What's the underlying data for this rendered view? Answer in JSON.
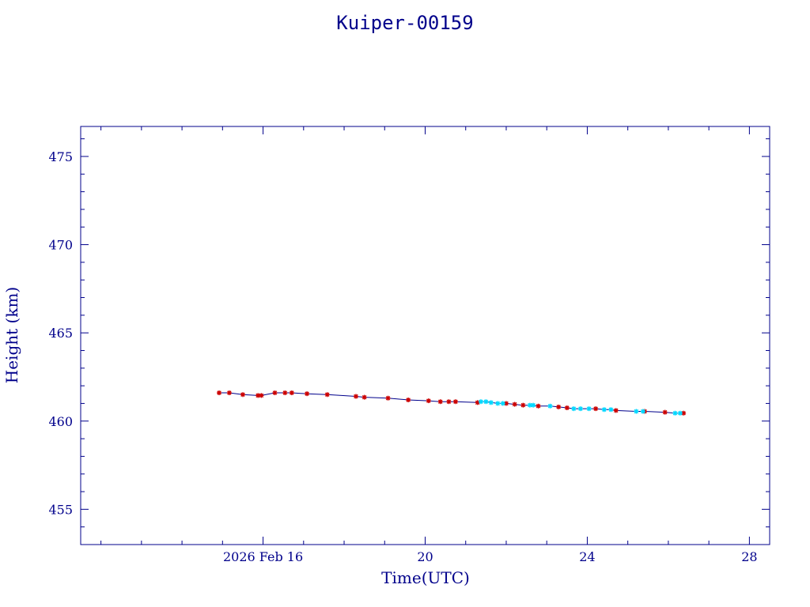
{
  "chart_data": {
    "type": "line",
    "title": "Kuiper-00159",
    "xlabel": "Time(UTC)",
    "ylabel": "Height (km)",
    "x_unit": "date (UTC)",
    "xlim": [
      "2026-02-11T12:00",
      "2026-02-28T12:00"
    ],
    "ylim": [
      453.0,
      476.7
    ],
    "x_ticks": [
      {
        "value": "2026-02-16",
        "label": "2026 Feb 16"
      },
      {
        "value": "2026-02-20",
        "label": "20"
      },
      {
        "value": "2026-02-24",
        "label": "24"
      },
      {
        "value": "2026-02-28",
        "label": "28"
      }
    ],
    "y_ticks": [
      455,
      460,
      465,
      470,
      475
    ],
    "grid": false,
    "colors": {
      "axes": "#00008b",
      "line": "#00008b",
      "red_markers": "#cc0000",
      "cyan_markers": "#00d8ff"
    },
    "series": [
      {
        "marker": "star",
        "color": "#cc0000",
        "x": [
          "2026-02-14T22:00",
          "2026-02-15T04:00",
          "2026-02-15T12:00",
          "2026-02-15T21:00",
          "2026-02-15T23:00",
          "2026-02-16T07:00",
          "2026-02-16T13:00",
          "2026-02-16T17:00",
          "2026-02-17T02:00",
          "2026-02-17T14:00",
          "2026-02-18T07:00",
          "2026-02-18T12:00",
          "2026-02-19T02:00",
          "2026-02-19T14:00",
          "2026-02-20T02:00",
          "2026-02-20T09:00",
          "2026-02-20T14:00",
          "2026-02-20T18:00",
          "2026-02-21T07:00",
          "2026-02-22T00:00",
          "2026-02-22T05:00",
          "2026-02-22T10:00",
          "2026-02-22T19:00",
          "2026-02-23T07:00",
          "2026-02-23T12:00",
          "2026-02-24T05:00",
          "2026-02-24T17:00",
          "2026-02-25T10:00",
          "2026-02-25T22:00",
          "2026-02-26T09:00"
        ],
        "y": [
          461.6,
          461.6,
          461.5,
          461.45,
          461.45,
          461.6,
          461.6,
          461.6,
          461.55,
          461.5,
          461.4,
          461.35,
          461.3,
          461.2,
          461.15,
          461.1,
          461.1,
          461.1,
          461.05,
          461.0,
          460.95,
          460.9,
          460.85,
          460.8,
          460.75,
          460.7,
          460.6,
          460.55,
          460.5,
          460.45
        ]
      },
      {
        "marker": "star",
        "color": "#00d8ff",
        "x": [
          "2026-02-21T09:00",
          "2026-02-21T12:00",
          "2026-02-21T15:00",
          "2026-02-21T19:00",
          "2026-02-21T22:00",
          "2026-02-22T14:00",
          "2026-02-22T16:00",
          "2026-02-23T02:00",
          "2026-02-23T16:00",
          "2026-02-23T20:00",
          "2026-02-24T01:00",
          "2026-02-24T10:00",
          "2026-02-24T14:00",
          "2026-02-25T05:00",
          "2026-02-25T09:00",
          "2026-02-26T04:00",
          "2026-02-26T07:00"
        ],
        "y": [
          461.1,
          461.1,
          461.05,
          461.0,
          461.0,
          460.9,
          460.9,
          460.85,
          460.7,
          460.7,
          460.7,
          460.65,
          460.65,
          460.55,
          460.55,
          460.45,
          460.45
        ]
      }
    ]
  }
}
